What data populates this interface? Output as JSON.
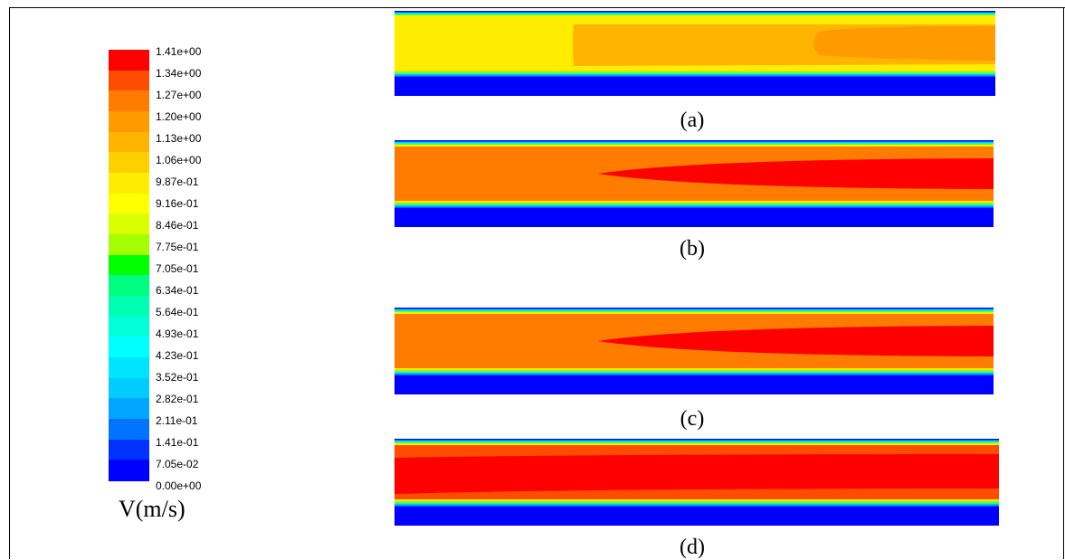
{
  "legend": {
    "unit": "V(m/s)",
    "ticks": [
      "1.41e+00",
      "1.34e+00",
      "1.27e+00",
      "1.20e+00",
      "1.13e+00",
      "1.06e+00",
      "9.87e-01",
      "9.16e-01",
      "8.46e-01",
      "7.75e-01",
      "7.05e-01",
      "6.34e-01",
      "5.64e-01",
      "4.93e-01",
      "4.23e-01",
      "3.52e-01",
      "2.82e-01",
      "2.11e-01",
      "1.41e-01",
      "7.05e-02",
      "0.00e+00"
    ],
    "colors": [
      "#ff0000",
      "#ff4d00",
      "#ff7c00",
      "#ff9a00",
      "#ffb400",
      "#ffd000",
      "#ffed00",
      "#ffff00",
      "#d9ff00",
      "#a6ff00",
      "#00ff00",
      "#00ff80",
      "#00ffb3",
      "#00ffd9",
      "#00ffff",
      "#00e5ff",
      "#00ccff",
      "#00a6ff",
      "#0073ff",
      "#0033ff",
      "#0000ff"
    ]
  },
  "panels": [
    {
      "caption": "(a)",
      "core_color": "#ffed00",
      "jet_color": "#ffb400"
    },
    {
      "caption": "(b)",
      "core_color": "#ff7c00",
      "jet_color": "#ff0000"
    },
    {
      "caption": "(c)",
      "core_color": "#ff7c00",
      "jet_color": "#ff0000"
    },
    {
      "caption": "(d)",
      "core_color": "#ff4d00",
      "jet_color": "#ff0000"
    }
  ]
}
